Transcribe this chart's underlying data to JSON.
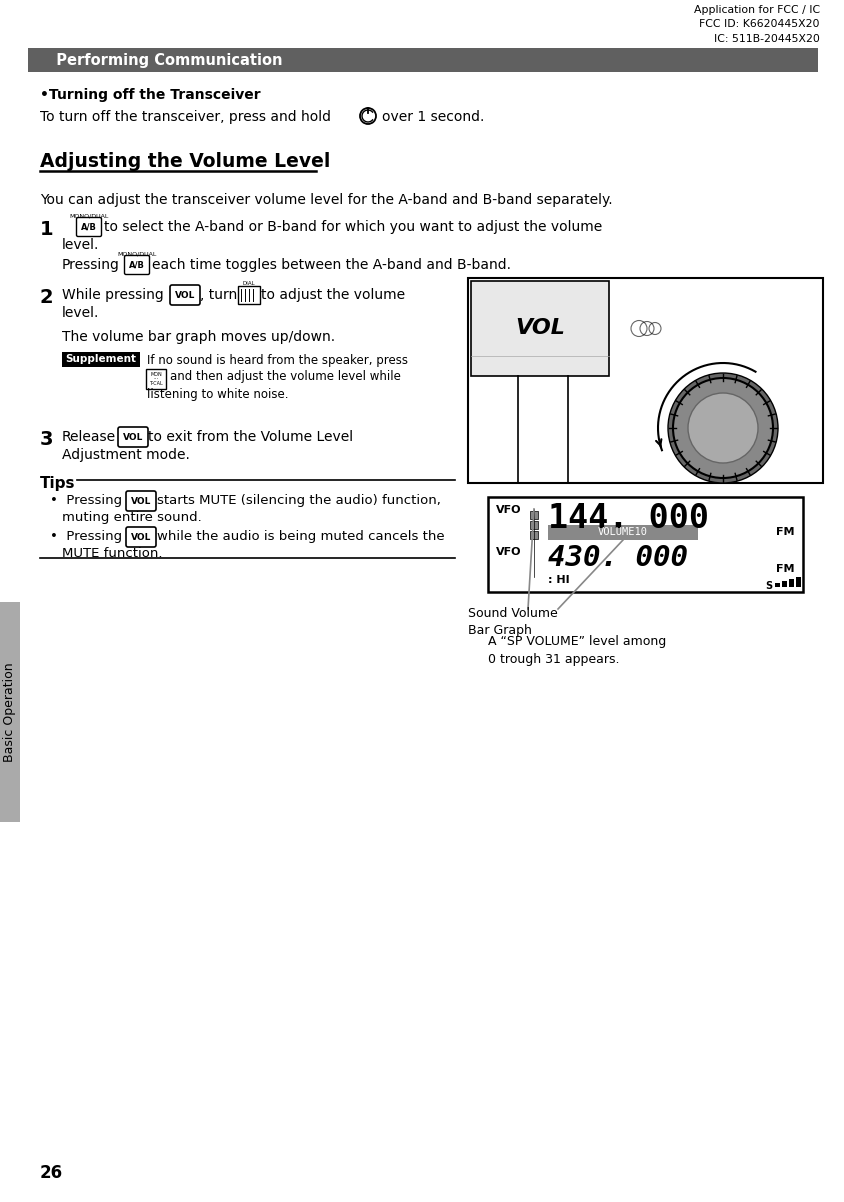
{
  "page_num": "26",
  "sidebar_label": "Basic Operation",
  "header_fcc": "Application for FCC / IC\nFCC ID: K6620445X20\nIC: 511B-20445X20",
  "section_bar_text": "  Performing Communication",
  "section_bar_color": "#606060",
  "title_turning": "•Turning off the Transceiver",
  "body_turning": "To turn off the transceiver, press and hold",
  "body_turning2": "over 1 second.",
  "heading_volume": "Adjusting the Volume Level",
  "body_volume_intro": "You can adjust the transceiver volume level for the A-band and B-band separately.",
  "step2_body": "The volume bar graph moves up/down.",
  "supplement_text1": "If no sound is heard from the speaker, press",
  "supplement_text2": "and then adjust the volume level while",
  "supplement_text3": "listening to white noise.",
  "step3_text2": "to exit from the Volume Level",
  "step3_text3": "Adjustment mode.",
  "tips_title": "Tips",
  "tip1_a": "•  Pressing",
  "tip1_b": "starts MUTE (silencing the audio) function,",
  "tip1_c": "muting entire sound.",
  "tip2_a": "•  Pressing",
  "tip2_b": "while the audio is being muted cancels the",
  "tip2_c": "MUTE function.",
  "sound_vol_label": "Sound Volume\nBar Graph",
  "sp_vol_text": "A “SP VOLUME” level among\n0 trough 31 appears.",
  "bg_color": "#ffffff",
  "text_color": "#000000"
}
